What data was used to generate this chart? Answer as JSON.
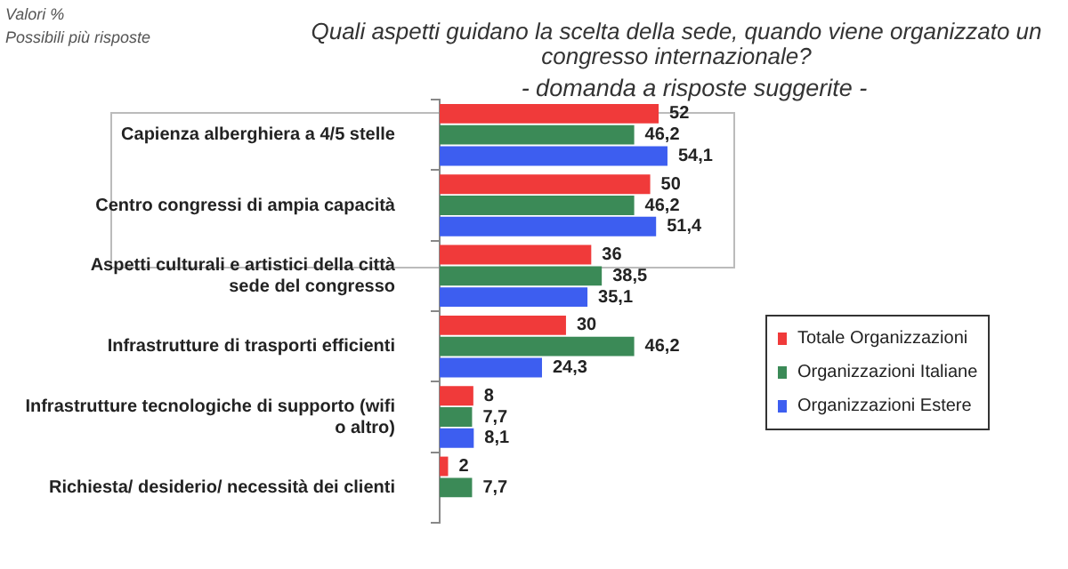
{
  "chart_data": {
    "type": "bar",
    "orientation": "horizontal",
    "title": "Quali aspetti guidano la scelta della sede, quando viene organizzato un congresso internazionale?",
    "subtitle": "- domanda a risposte suggerite -",
    "annotations": [
      "Valori %",
      "Possibili più risposte"
    ],
    "categories": [
      "Capienza alberghiera a 4/5 stelle",
      "Centro congressi di ampia capacità",
      "Aspetti culturali e artistici della città sede del congresso",
      "Infrastrutture di trasporti efficienti",
      "Infrastrutture tecnologiche di supporto (wifi o altro)",
      "Richiesta/ desiderio/ necessità dei clienti"
    ],
    "series": [
      {
        "name": "Totale Organizzazioni",
        "color": "#f03a3a",
        "values": [
          52,
          50,
          36,
          30,
          8,
          2
        ],
        "value_labels": [
          "52",
          "50",
          "36",
          "30",
          "8",
          "2"
        ]
      },
      {
        "name": "Organizzazioni Italiane",
        "color": "#3b8a57",
        "values": [
          46.2,
          46.2,
          38.5,
          46.2,
          7.7,
          7.7
        ],
        "value_labels": [
          "46,2",
          "46,2",
          "38,5",
          "46,2",
          "7,7",
          "7,7"
        ]
      },
      {
        "name": "Organizzazioni Estere",
        "color": "#3d5ef0",
        "values": [
          54.1,
          51.4,
          35.1,
          24.3,
          8.1,
          null
        ],
        "value_labels": [
          "54,1",
          "51,4",
          "35,1",
          "24,3",
          "8,1",
          null
        ]
      }
    ],
    "legend": "right"
  }
}
